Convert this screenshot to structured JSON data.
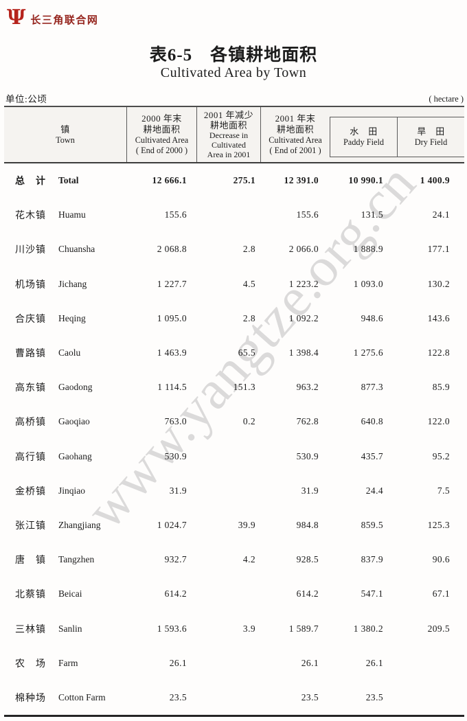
{
  "logo": {
    "glyph": "Ψ",
    "site_name": "长三角联合网"
  },
  "title": {
    "zh": "表6-5　各镇耕地面积",
    "en": "Cultivated Area by Town"
  },
  "unit": {
    "left": "单位:公顷",
    "right": "( hectare )"
  },
  "watermark": "www.yangtze.org.cn",
  "table": {
    "header": {
      "town": [
        "镇",
        "Town"
      ],
      "c2000": [
        "2000 年末",
        "耕地面积",
        "Cultivated Area",
        "( End of 2000 )"
      ],
      "decrease": [
        "2001 年减少",
        "耕地面积",
        "Decrease in",
        "Cultivated",
        "Area in 2001"
      ],
      "c2001": [
        "2001 年末",
        "耕地面积",
        "Cultivated Area",
        "( End of 2001 )"
      ],
      "paddy": [
        "水　田",
        "Paddy Field"
      ],
      "dry": [
        "旱　田",
        "Dry Field"
      ]
    },
    "rows": [
      {
        "zh": "总　计",
        "en": "Total",
        "bold": true,
        "v": [
          "12 666.1",
          "275.1",
          "12 391.0",
          "10 990.1",
          "1 400.9"
        ]
      },
      {
        "zh": "花木镇",
        "en": "Huamu",
        "bold": false,
        "v": [
          "155.6",
          "",
          "155.6",
          "131.5",
          "24.1"
        ]
      },
      {
        "zh": "川沙镇",
        "en": "Chuansha",
        "bold": false,
        "v": [
          "2 068.8",
          "2.8",
          "2 066.0",
          "1 888.9",
          "177.1"
        ]
      },
      {
        "zh": "机场镇",
        "en": "Jichang",
        "bold": false,
        "v": [
          "1 227.7",
          "4.5",
          "1 223.2",
          "1 093.0",
          "130.2"
        ]
      },
      {
        "zh": "合庆镇",
        "en": "Heqing",
        "bold": false,
        "v": [
          "1 095.0",
          "2.8",
          "1 092.2",
          "948.6",
          "143.6"
        ]
      },
      {
        "zh": "曹路镇",
        "en": "Caolu",
        "bold": false,
        "v": [
          "1 463.9",
          "65.5",
          "1 398.4",
          "1 275.6",
          "122.8"
        ]
      },
      {
        "zh": "高东镇",
        "en": "Gaodong",
        "bold": false,
        "v": [
          "1 114.5",
          "151.3",
          "963.2",
          "877.3",
          "85.9"
        ]
      },
      {
        "zh": "高桥镇",
        "en": "Gaoqiao",
        "bold": false,
        "v": [
          "763.0",
          "0.2",
          "762.8",
          "640.8",
          "122.0"
        ]
      },
      {
        "zh": "高行镇",
        "en": "Gaohang",
        "bold": false,
        "v": [
          "530.9",
          "",
          "530.9",
          "435.7",
          "95.2"
        ]
      },
      {
        "zh": "金桥镇",
        "en": "Jinqiao",
        "bold": false,
        "v": [
          "31.9",
          "",
          "31.9",
          "24.4",
          "7.5"
        ]
      },
      {
        "zh": "张江镇",
        "en": "Zhangjiang",
        "bold": false,
        "v": [
          "1 024.7",
          "39.9",
          "984.8",
          "859.5",
          "125.3"
        ]
      },
      {
        "zh": "唐　镇",
        "en": "Tangzhen",
        "bold": false,
        "v": [
          "932.7",
          "4.2",
          "928.5",
          "837.9",
          "90.6"
        ]
      },
      {
        "zh": "北蔡镇",
        "en": "Beicai",
        "bold": false,
        "v": [
          "614.2",
          "",
          "614.2",
          "547.1",
          "67.1"
        ]
      },
      {
        "zh": "三林镇",
        "en": "Sanlin",
        "bold": false,
        "v": [
          "1 593.6",
          "3.9",
          "1 589.7",
          "1 380.2",
          "209.5"
        ]
      },
      {
        "zh": "农　场",
        "en": "Farm",
        "bold": false,
        "v": [
          "26.1",
          "",
          "26.1",
          "26.1",
          ""
        ]
      },
      {
        "zh": "棉种场",
        "en": "Cotton Farm",
        "bold": false,
        "v": [
          "23.5",
          "",
          "23.5",
          "23.5",
          ""
        ]
      }
    ]
  }
}
